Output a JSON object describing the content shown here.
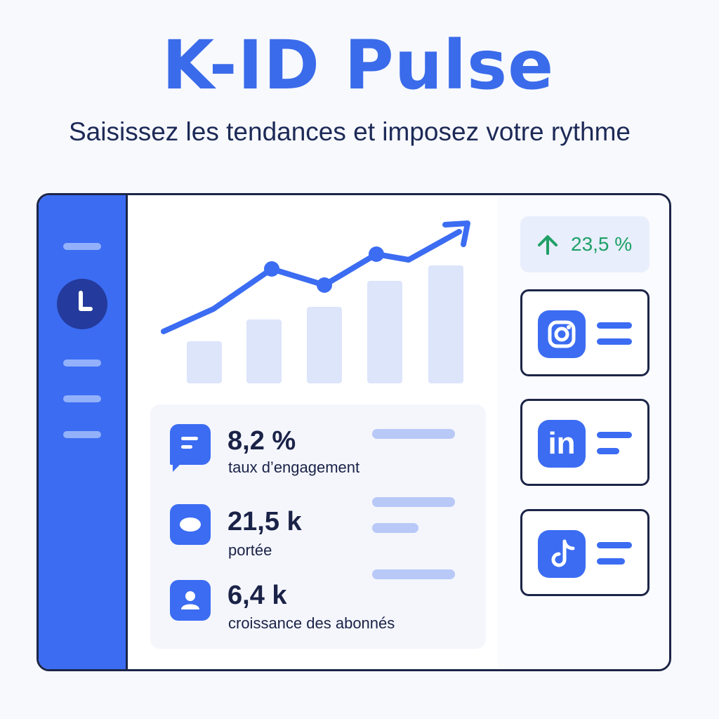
{
  "header": {
    "title": "K-ID Pulse",
    "subtitle": "Saisissez les tendances et imposez votre rythme"
  },
  "colors": {
    "accent": "#3b6cf2",
    "bar": "#dde5fb",
    "positive": "#1fa067",
    "dark": "#1c2547"
  },
  "sidebar": {
    "icons": [
      "menu-line",
      "clock-icon",
      "menu-line",
      "menu-line",
      "menu-line"
    ]
  },
  "growth": {
    "value": "23,5 %",
    "icon": "arrow-up-icon"
  },
  "stats": [
    {
      "value": "8,2 %",
      "label": "taux d’engagement",
      "icon": "chat-icon"
    },
    {
      "value": "21,5 k",
      "label": "portée",
      "icon": "reach-icon"
    },
    {
      "value": "6,4 k",
      "label": "croissance des abonnés",
      "icon": "user-icon"
    }
  ],
  "socials": [
    {
      "name": "Instagram",
      "icon": "instagram-icon"
    },
    {
      "name": "LinkedIn",
      "icon": "linkedin-icon",
      "text": "in"
    },
    {
      "name": "TikTok",
      "icon": "tiktok-icon"
    }
  ]
}
